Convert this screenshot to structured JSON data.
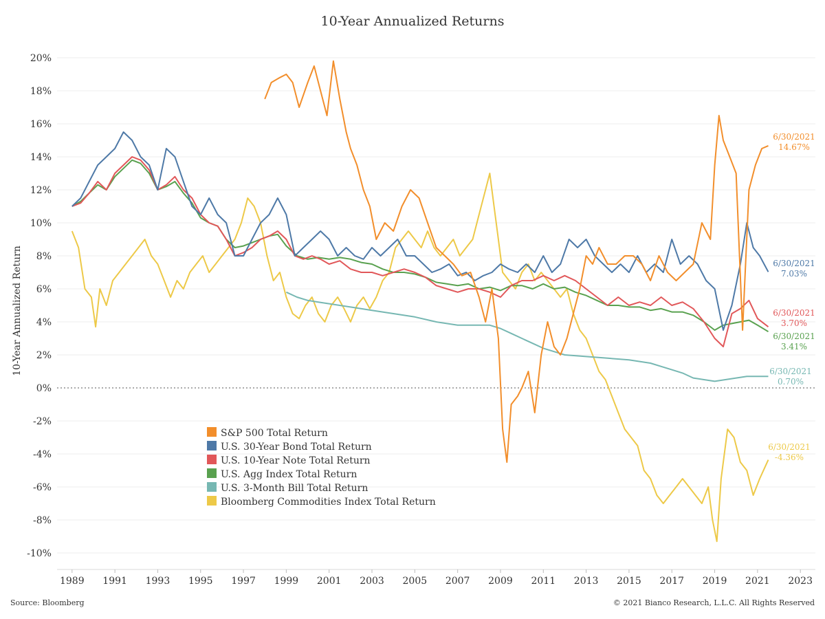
{
  "chart_data": {
    "type": "line",
    "title": "10-Year Annualized Returns",
    "ylabel": "10-Year Annualized Return",
    "xlabel": "",
    "x_tick_labels": [
      "1989",
      "1991",
      "1993",
      "1995",
      "1997",
      "1999",
      "2001",
      "2003",
      "2005",
      "2007",
      "2009",
      "2011",
      "2013",
      "2015",
      "2017",
      "2019",
      "2021",
      "2023"
    ],
    "y_tick_labels": [
      "-10%",
      "-8%",
      "-6%",
      "-4%",
      "-2%",
      "0%",
      "2%",
      "4%",
      "6%",
      "8%",
      "10%",
      "12%",
      "14%",
      "16%",
      "18%",
      "20%"
    ],
    "xlim": [
      1988.3,
      2023.7
    ],
    "ylim": [
      -11,
      21
    ],
    "grid": "horizontal",
    "zero_line": "dotted",
    "legend_position": "lower-left",
    "series": [
      {
        "name": "S&P 500 Total Return",
        "color": "#f28e2b",
        "end_label": "6/30/2021",
        "end_value": "14.67%",
        "x": [
          1998.0,
          1998.3,
          1998.7,
          1999.0,
          1999.3,
          1999.6,
          2000.0,
          2000.3,
          2000.6,
          2000.9,
          2001.2,
          2001.5,
          2001.8,
          2002.0,
          2002.3,
          2002.6,
          2002.9,
          2003.2,
          2003.6,
          2004.0,
          2004.4,
          2004.8,
          2005.2,
          2005.6,
          2006.0,
          2006.4,
          2006.8,
          2007.2,
          2007.6,
          2008.0,
          2008.3,
          2008.6,
          2008.9,
          2009.1,
          2009.3,
          2009.5,
          2009.8,
          2010.0,
          2010.3,
          2010.6,
          2010.9,
          2011.2,
          2011.5,
          2011.8,
          2012.1,
          2012.4,
          2012.7,
          2013.0,
          2013.3,
          2013.6,
          2014.0,
          2014.4,
          2014.8,
          2015.2,
          2015.6,
          2016.0,
          2016.4,
          2016.8,
          2017.2,
          2017.6,
          2018.0,
          2018.4,
          2018.8,
          2019.0,
          2019.2,
          2019.4,
          2019.7,
          2020.0,
          2020.3,
          2020.6,
          2020.9,
          2021.2,
          2021.5
        ],
        "y": [
          17.5,
          18.5,
          18.8,
          19.0,
          18.5,
          17.0,
          18.5,
          19.5,
          18.0,
          16.5,
          19.8,
          17.5,
          15.5,
          14.5,
          13.5,
          12.0,
          11.0,
          9.0,
          10.0,
          9.5,
          11.0,
          12.0,
          11.5,
          10.0,
          8.5,
          8.0,
          7.5,
          6.8,
          7.0,
          5.5,
          4.0,
          6.0,
          3.0,
          -2.5,
          -4.5,
          -1.0,
          -0.5,
          0.0,
          1.0,
          -1.5,
          2.0,
          4.0,
          2.5,
          2.0,
          3.0,
          4.5,
          6.0,
          8.0,
          7.5,
          8.5,
          7.5,
          7.5,
          8.0,
          8.0,
          7.5,
          6.5,
          8.0,
          7.0,
          6.5,
          7.0,
          7.5,
          10.0,
          9.0,
          13.5,
          16.5,
          15.0,
          14.0,
          13.0,
          3.5,
          12.0,
          13.5,
          14.5,
          14.67
        ]
      },
      {
        "name": "U.S. 30-Year Bond Total Return",
        "color": "#4e79a7",
        "end_label": "6/30/2021",
        "end_value": "7.03%",
        "x": [
          1989.0,
          1989.4,
          1989.8,
          1990.2,
          1990.6,
          1991.0,
          1991.4,
          1991.8,
          1992.2,
          1992.6,
          1993.0,
          1993.4,
          1993.8,
          1994.2,
          1994.6,
          1995.0,
          1995.4,
          1995.8,
          1996.2,
          1996.6,
          1997.0,
          1997.4,
          1997.8,
          1998.2,
          1998.6,
          1999.0,
          1999.4,
          1999.8,
          2000.2,
          2000.6,
          2001.0,
          2001.4,
          2001.8,
          2002.2,
          2002.6,
          2003.0,
          2003.4,
          2003.8,
          2004.2,
          2004.6,
          2005.0,
          2005.4,
          2005.8,
          2006.2,
          2006.6,
          2007.0,
          2007.4,
          2007.8,
          2008.2,
          2008.6,
          2009.0,
          2009.4,
          2009.8,
          2010.2,
          2010.6,
          2011.0,
          2011.4,
          2011.8,
          2012.2,
          2012.6,
          2013.0,
          2013.4,
          2013.8,
          2014.2,
          2014.6,
          2015.0,
          2015.4,
          2015.8,
          2016.2,
          2016.6,
          2017.0,
          2017.4,
          2017.8,
          2018.2,
          2018.6,
          2019.0,
          2019.4,
          2019.8,
          2020.2,
          2020.5,
          2020.8,
          2021.1,
          2021.5
        ],
        "y": [
          11.0,
          11.5,
          12.5,
          13.5,
          14.0,
          14.5,
          15.5,
          15.0,
          14.0,
          13.5,
          12.0,
          14.5,
          14.0,
          12.5,
          11.0,
          10.5,
          11.5,
          10.5,
          10.0,
          8.0,
          8.0,
          9.0,
          10.0,
          10.5,
          11.5,
          10.5,
          8.0,
          8.5,
          9.0,
          9.5,
          9.0,
          8.0,
          8.5,
          8.0,
          7.8,
          8.5,
          8.0,
          8.5,
          9.0,
          8.0,
          8.0,
          7.5,
          7.0,
          7.2,
          7.5,
          6.8,
          7.0,
          6.5,
          6.8,
          7.0,
          7.5,
          7.2,
          7.0,
          7.5,
          7.0,
          8.0,
          7.0,
          7.5,
          9.0,
          8.5,
          9.0,
          8.0,
          7.5,
          7.0,
          7.5,
          7.0,
          8.0,
          7.0,
          7.5,
          7.0,
          9.0,
          7.5,
          8.0,
          7.5,
          6.5,
          6.0,
          3.5,
          5.0,
          7.5,
          10.0,
          8.5,
          8.0,
          7.03
        ]
      },
      {
        "name": "U.S. 10-Year Note Total Return",
        "color": "#e15759",
        "end_label": "6/30/2021",
        "end_value": "3.70%",
        "x": [
          1989.0,
          1989.4,
          1989.8,
          1990.2,
          1990.6,
          1991.0,
          1991.4,
          1991.8,
          1992.2,
          1992.6,
          1993.0,
          1993.4,
          1993.8,
          1994.2,
          1994.6,
          1995.0,
          1995.4,
          1995.8,
          1996.2,
          1996.6,
          1997.0,
          1997.4,
          1997.8,
          1998.2,
          1998.6,
          1999.0,
          1999.4,
          1999.8,
          2000.2,
          2000.6,
          2001.0,
          2001.5,
          2002.0,
          2002.5,
          2003.0,
          2003.5,
          2004.0,
          2004.5,
          2005.0,
          2005.5,
          2006.0,
          2006.5,
          2007.0,
          2007.5,
          2008.0,
          2008.5,
          2009.0,
          2009.5,
          2010.0,
          2010.5,
          2011.0,
          2011.5,
          2012.0,
          2012.5,
          2013.0,
          2013.5,
          2014.0,
          2014.5,
          2015.0,
          2015.5,
          2016.0,
          2016.5,
          2017.0,
          2017.5,
          2018.0,
          2018.5,
          2019.0,
          2019.4,
          2019.8,
          2020.2,
          2020.6,
          2021.0,
          2021.5
        ],
        "y": [
          11.0,
          11.2,
          11.8,
          12.5,
          12.0,
          13.0,
          13.5,
          14.0,
          13.8,
          13.2,
          12.0,
          12.3,
          12.8,
          12.0,
          11.5,
          10.5,
          10.0,
          9.8,
          9.0,
          8.0,
          8.2,
          8.5,
          9.0,
          9.2,
          9.5,
          9.0,
          8.0,
          7.8,
          8.0,
          7.8,
          7.5,
          7.7,
          7.2,
          7.0,
          7.0,
          6.8,
          7.0,
          7.2,
          7.0,
          6.7,
          6.2,
          6.0,
          5.8,
          6.0,
          6.0,
          5.8,
          5.5,
          6.2,
          6.5,
          6.5,
          6.8,
          6.5,
          6.8,
          6.5,
          6.0,
          5.5,
          5.0,
          5.5,
          5.0,
          5.2,
          5.0,
          5.5,
          5.0,
          5.2,
          4.8,
          4.0,
          3.0,
          2.5,
          4.5,
          4.8,
          5.3,
          4.2,
          3.7
        ]
      },
      {
        "name": "U.S. Agg Index Total Return",
        "color": "#59a14f",
        "end_label": "6/30/2021",
        "end_value": "3.41%",
        "x": [
          1989.0,
          1989.4,
          1989.8,
          1990.2,
          1990.6,
          1991.0,
          1991.4,
          1991.8,
          1992.2,
          1992.6,
          1993.0,
          1993.4,
          1993.8,
          1994.2,
          1994.6,
          1995.0,
          1995.4,
          1995.8,
          1996.2,
          1996.6,
          1997.0,
          1997.4,
          1997.8,
          1998.2,
          1998.6,
          1999.0,
          1999.5,
          2000.0,
          2000.5,
          2001.0,
          2001.5,
          2002.0,
          2002.5,
          2003.0,
          2003.5,
          2004.0,
          2004.5,
          2005.0,
          2005.5,
          2006.0,
          2006.5,
          2007.0,
          2007.5,
          2008.0,
          2008.5,
          2009.0,
          2009.5,
          2010.0,
          2010.5,
          2011.0,
          2011.5,
          2012.0,
          2012.5,
          2013.0,
          2013.5,
          2014.0,
          2014.5,
          2015.0,
          2015.5,
          2016.0,
          2016.5,
          2017.0,
          2017.5,
          2018.0,
          2018.5,
          2019.0,
          2019.4,
          2019.8,
          2020.2,
          2020.6,
          2021.0,
          2021.5
        ],
        "y": [
          11.0,
          11.3,
          11.8,
          12.3,
          12.0,
          12.8,
          13.3,
          13.8,
          13.6,
          13.0,
          12.0,
          12.2,
          12.5,
          11.8,
          11.2,
          10.3,
          10.0,
          9.8,
          9.0,
          8.5,
          8.6,
          8.8,
          9.0,
          9.2,
          9.3,
          8.6,
          8.0,
          7.8,
          7.9,
          7.8,
          7.9,
          7.8,
          7.6,
          7.5,
          7.2,
          7.0,
          7.0,
          6.9,
          6.7,
          6.4,
          6.3,
          6.2,
          6.3,
          6.0,
          6.1,
          5.9,
          6.2,
          6.2,
          6.0,
          6.3,
          6.0,
          6.1,
          5.8,
          5.6,
          5.3,
          5.0,
          5.0,
          4.9,
          4.9,
          4.7,
          4.8,
          4.6,
          4.6,
          4.4,
          4.0,
          3.5,
          3.8,
          3.9,
          4.0,
          4.1,
          3.8,
          3.41
        ]
      },
      {
        "name": "U.S. 3-Month Bill Total Return",
        "color": "#76b7b2",
        "end_label": "6/30/2021",
        "end_value": "0.70%",
        "x": [
          1999.0,
          1999.5,
          2000.0,
          2000.5,
          2001.0,
          2002.0,
          2003.0,
          2004.0,
          2005.0,
          2006.0,
          2007.0,
          2008.0,
          2008.5,
          2009.0,
          2009.5,
          2010.0,
          2010.5,
          2011.0,
          2011.5,
          2012.0,
          2013.0,
          2014.0,
          2015.0,
          2016.0,
          2016.5,
          2017.0,
          2017.5,
          2018.0,
          2018.5,
          2019.0,
          2019.5,
          2020.0,
          2020.5,
          2021.0,
          2021.5
        ],
        "y": [
          5.8,
          5.5,
          5.3,
          5.2,
          5.1,
          4.9,
          4.7,
          4.5,
          4.3,
          4.0,
          3.8,
          3.8,
          3.8,
          3.6,
          3.3,
          3.0,
          2.7,
          2.4,
          2.2,
          2.0,
          1.9,
          1.8,
          1.7,
          1.5,
          1.3,
          1.1,
          0.9,
          0.6,
          0.5,
          0.4,
          0.5,
          0.6,
          0.7,
          0.7,
          0.7
        ]
      },
      {
        "name": "Bloomberg Commodities Index Total Return",
        "color": "#edc948",
        "end_label": "6/30/2021",
        "end_value": "-4.36%",
        "x": [
          1989.0,
          1989.3,
          1989.6,
          1989.9,
          1990.1,
          1990.3,
          1990.6,
          1990.9,
          1991.2,
          1991.5,
          1991.8,
          1992.1,
          1992.4,
          1992.7,
          1993.0,
          1993.3,
          1993.6,
          1993.9,
          1994.2,
          1994.5,
          1994.8,
          1995.1,
          1995.4,
          1995.7,
          1996.0,
          1996.3,
          1996.6,
          1996.9,
          1997.2,
          1997.5,
          1997.8,
          1998.1,
          1998.4,
          1998.7,
          1999.0,
          1999.3,
          1999.6,
          1999.9,
          2000.2,
          2000.5,
          2000.8,
          2001.1,
          2001.4,
          2001.7,
          2002.0,
          2002.3,
          2002.6,
          2002.9,
          2003.2,
          2003.5,
          2003.8,
          2004.1,
          2004.4,
          2004.7,
          2005.0,
          2005.3,
          2005.6,
          2005.9,
          2006.2,
          2006.5,
          2006.8,
          2007.1,
          2007.4,
          2007.7,
          2008.0,
          2008.3,
          2008.5,
          2008.7,
          2008.9,
          2009.1,
          2009.4,
          2009.7,
          2010.0,
          2010.3,
          2010.6,
          2010.9,
          2011.2,
          2011.5,
          2011.8,
          2012.1,
          2012.4,
          2012.7,
          2013.0,
          2013.3,
          2013.6,
          2013.9,
          2014.2,
          2014.5,
          2014.8,
          2015.1,
          2015.4,
          2015.7,
          2016.0,
          2016.3,
          2016.6,
          2016.9,
          2017.2,
          2017.5,
          2017.8,
          2018.1,
          2018.4,
          2018.7,
          2018.9,
          2019.1,
          2019.3,
          2019.6,
          2019.9,
          2020.2,
          2020.5,
          2020.8,
          2021.1,
          2021.5
        ],
        "y": [
          9.5,
          8.5,
          6.0,
          5.5,
          3.7,
          6.0,
          5.0,
          6.5,
          7.0,
          7.5,
          8.0,
          8.5,
          9.0,
          8.0,
          7.5,
          6.5,
          5.5,
          6.5,
          6.0,
          7.0,
          7.5,
          8.0,
          7.0,
          7.5,
          8.0,
          8.5,
          9.0,
          10.0,
          11.5,
          11.0,
          10.0,
          8.0,
          6.5,
          7.0,
          5.5,
          4.5,
          4.2,
          5.0,
          5.5,
          4.5,
          4.0,
          5.0,
          5.5,
          4.8,
          4.0,
          5.0,
          5.5,
          4.8,
          5.5,
          6.5,
          7.0,
          8.5,
          9.0,
          9.5,
          9.0,
          8.5,
          9.5,
          8.5,
          8.0,
          8.5,
          9.0,
          8.0,
          8.5,
          9.0,
          10.5,
          12.0,
          13.0,
          11.0,
          9.0,
          7.0,
          6.5,
          6.0,
          7.0,
          7.5,
          6.5,
          7.0,
          6.5,
          6.0,
          5.5,
          6.0,
          4.5,
          3.5,
          3.0,
          2.0,
          1.0,
          0.5,
          -0.5,
          -1.5,
          -2.5,
          -3.0,
          -3.5,
          -5.0,
          -5.5,
          -6.5,
          -7.0,
          -6.5,
          -6.0,
          -5.5,
          -6.0,
          -6.5,
          -7.0,
          -6.0,
          -8.0,
          -9.3,
          -5.5,
          -2.5,
          -3.0,
          -4.5,
          -5.0,
          -6.5,
          -5.5,
          -4.36
        ]
      }
    ]
  },
  "footer": {
    "source": "Source: Bloomberg",
    "copyright": "© 2021 Bianco Research, L.L.C. All Rights Reserved"
  }
}
